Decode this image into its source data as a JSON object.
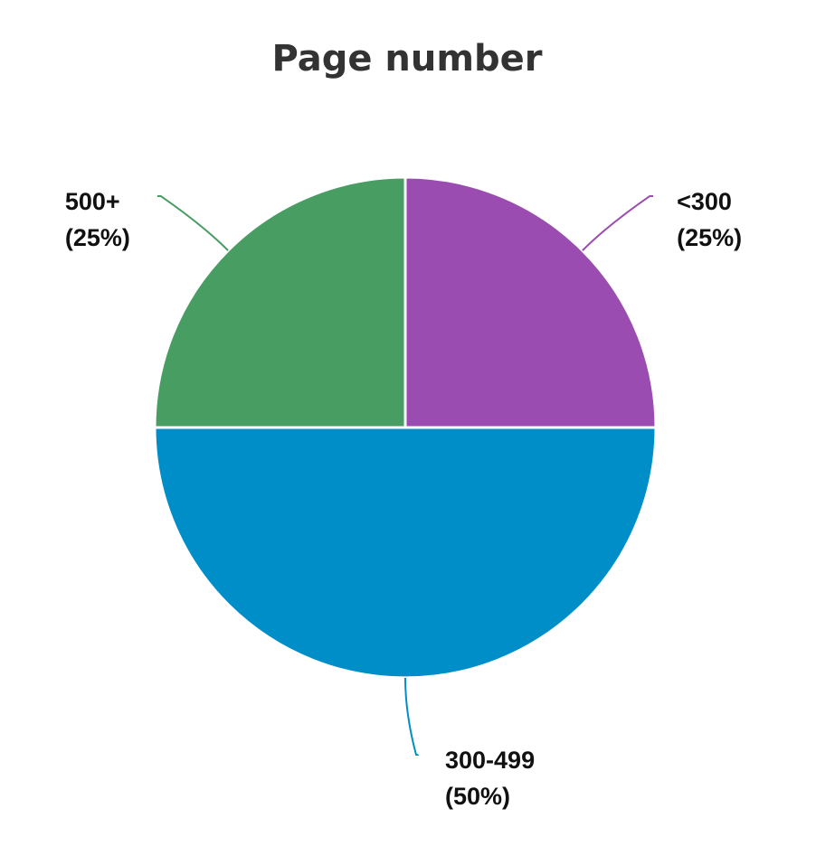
{
  "chart_data": {
    "type": "pie",
    "title": "Page number",
    "categories": [
      "<300",
      "300-499",
      "500+"
    ],
    "values": [
      25,
      50,
      25
    ],
    "value_labels": [
      "(25%)",
      "(50%)",
      "(25%)"
    ],
    "colors": [
      "#9b4cb0",
      "#008ec9",
      "#489d63"
    ]
  }
}
